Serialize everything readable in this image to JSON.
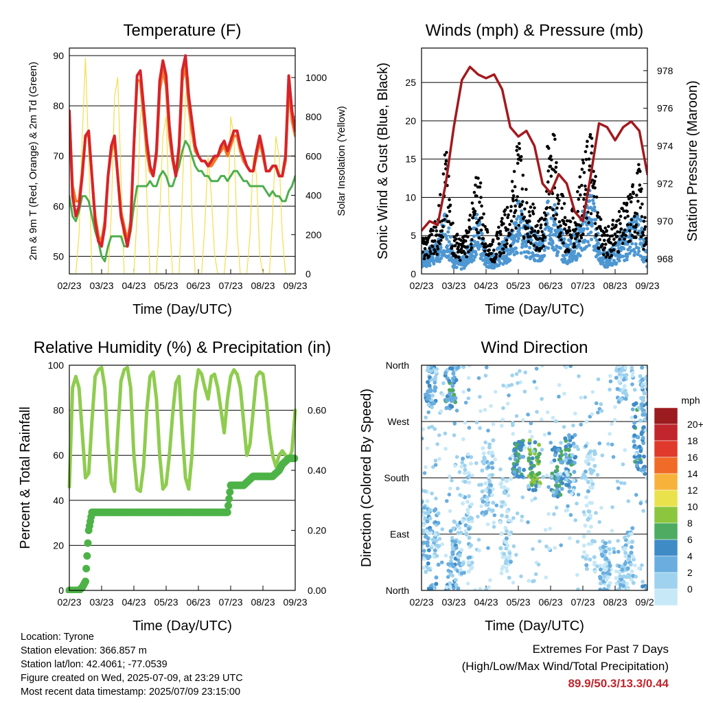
{
  "station": {
    "location": "Location: Tyrone",
    "elevation": "Station elevation: 366.857 m",
    "latlon": "Station lat/lon: 42.4061; -77.0539",
    "created": "Figure created on Wed, 2025-07-09, at 23:29 UTC",
    "recent": "Most recent data timestamp: 2025/07/09 23:15:00"
  },
  "extremes": {
    "title": "Extremes For Past 7 Days",
    "subtitle": "(High/Low/Max Wind/Total Precipitation)",
    "values": "89.9/50.3/13.3/0.44",
    "color": "#c0262c"
  },
  "time_ticks": [
    "02/23",
    "03/23",
    "04/23",
    "05/23",
    "06/23",
    "07/23",
    "08/23",
    "09/23"
  ],
  "time_label": "Time (Day/UTC)",
  "colors": {
    "temp2m": "#d8232a",
    "temp9m": "#f07a26",
    "dewpoint": "#4cae4c",
    "solar": "#f5dd4a",
    "wind": "#4d97d2",
    "gust": "#000000",
    "pressure": "#a3191d",
    "rh": "#8fcc4f",
    "precip": "#4db347"
  },
  "chart_data": [
    {
      "type": "line",
      "title": "Temperature (F)",
      "xlabel": "Time (Day/UTC)",
      "ylabel": "2m & 9m T (Red, Orange) & 2m Td (Green)",
      "ylabel_right": "Solar Insolation (Yellow)",
      "ylim": [
        46.5,
        91.5
      ],
      "yticks": [
        50,
        60,
        70,
        80,
        90
      ],
      "ylim_right": [
        0,
        1150
      ],
      "yticks_right": [
        0,
        200,
        400,
        600,
        800,
        1000
      ],
      "x": [
        0,
        0.1,
        0.2,
        0.3,
        0.4,
        0.5,
        0.6,
        0.7,
        0.8,
        0.9,
        1,
        1.1,
        1.2,
        1.3,
        1.4,
        1.5,
        1.6,
        1.7,
        1.8,
        1.9,
        2,
        2.1,
        2.2,
        2.3,
        2.4,
        2.5,
        2.6,
        2.7,
        2.8,
        2.9,
        3,
        3.1,
        3.2,
        3.3,
        3.4,
        3.5,
        3.6,
        3.7,
        3.8,
        3.9,
        4,
        4.1,
        4.2,
        4.3,
        4.4,
        4.5,
        4.6,
        4.7,
        4.8,
        4.9,
        5,
        5.1,
        5.2,
        5.3,
        5.4,
        5.5,
        5.6,
        5.7,
        5.8,
        5.9,
        6,
        6.1,
        6.2,
        6.3,
        6.4,
        6.5,
        6.6,
        6.7,
        6.8,
        6.9,
        7
      ],
      "series": [
        {
          "name": "2m T",
          "color": "#d8232a",
          "values": [
            79,
            62,
            58,
            60,
            66,
            74,
            75,
            66,
            57,
            53,
            52,
            56,
            66,
            72,
            74,
            66,
            58,
            55,
            52,
            56,
            72,
            86,
            87,
            80,
            73,
            68,
            66,
            71,
            85,
            89,
            86,
            76,
            70,
            66,
            72,
            87,
            90,
            82,
            77,
            72,
            70,
            69,
            69,
            68,
            69,
            70,
            70,
            72,
            73,
            71,
            73,
            75,
            75,
            72,
            70,
            68,
            67,
            67,
            71,
            74,
            71,
            67,
            67,
            68,
            68,
            66,
            66,
            70,
            86,
            79,
            75
          ]
        },
        {
          "name": "9m T",
          "color": "#f07a26",
          "values": [
            78,
            64,
            61,
            61,
            67,
            74,
            74,
            66,
            58,
            54,
            53,
            57,
            66,
            71,
            73,
            66,
            59,
            56,
            53,
            57,
            72,
            85,
            85,
            78,
            71,
            67,
            66,
            70,
            83,
            87,
            84,
            74,
            69,
            66,
            71,
            85,
            88,
            80,
            75,
            71,
            70,
            69,
            69,
            68,
            68,
            69,
            70,
            71,
            72,
            70,
            72,
            74,
            74,
            71,
            69,
            68,
            67,
            67,
            70,
            73,
            70,
            67,
            67,
            68,
            68,
            66,
            66,
            69,
            84,
            77,
            74
          ]
        },
        {
          "name": "2m Td",
          "color": "#4cae4c",
          "values": [
            62,
            58,
            57,
            59,
            62,
            62,
            61,
            58,
            55,
            53,
            50,
            49,
            52,
            54,
            54,
            54,
            54,
            52,
            52,
            55,
            60,
            64,
            64,
            64,
            64,
            65,
            64,
            64,
            66,
            67,
            66,
            64,
            64,
            66,
            68,
            71,
            73,
            72,
            70,
            68,
            67,
            67,
            66,
            66,
            65,
            65,
            65,
            66,
            66,
            65,
            66,
            67,
            67,
            66,
            65,
            65,
            64,
            64,
            64,
            64,
            64,
            63,
            62,
            63,
            62,
            62,
            61,
            61,
            63,
            64,
            66
          ]
        },
        {
          "name": "Solar",
          "color": "#f5dd4a",
          "axis": "right",
          "values": [
            0,
            0,
            0,
            200,
            700,
            1100,
            600,
            0,
            0,
            0,
            0,
            0,
            0,
            300,
            900,
            1000,
            500,
            0,
            0,
            0,
            0,
            300,
            800,
            900,
            400,
            0,
            0,
            0,
            300,
            700,
            800,
            300,
            0,
            0,
            0,
            400,
            900,
            1000,
            300,
            0,
            0,
            0,
            250,
            600,
            400,
            100,
            0,
            0,
            0,
            200,
            800,
            700,
            200,
            0,
            0,
            0,
            200,
            600,
            500,
            100,
            0,
            0,
            0,
            300,
            700,
            600,
            200,
            0,
            0,
            0,
            0
          ]
        }
      ]
    },
    {
      "type": "scatter",
      "title": "Winds (mph) & Pressure (mb)",
      "xlabel": "Time (Day/UTC)",
      "ylabel": "Sonic Wind & Gust (Blue, Black)",
      "ylabel_right": "Station Pressure (Maroon)",
      "ylim": [
        0,
        29.5
      ],
      "yticks": [
        0,
        5,
        10,
        15,
        20,
        25
      ],
      "ylim_right": [
        967.2,
        979.2
      ],
      "yticks_right": [
        968,
        970,
        972,
        974,
        976,
        978
      ],
      "x": [
        0,
        0.25,
        0.5,
        0.75,
        1,
        1.25,
        1.5,
        1.75,
        2,
        2.25,
        2.5,
        2.75,
        3,
        3.25,
        3.5,
        3.75,
        4,
        4.25,
        4.5,
        4.75,
        5,
        5.25,
        5.5,
        5.75,
        6,
        6.25,
        6.5,
        6.75,
        7
      ],
      "series": [
        {
          "name": "Sonic Wind",
          "color": "#4d97d2",
          "values": [
            2,
            2.5,
            3,
            6,
            2,
            1.5,
            3,
            6,
            2,
            2,
            3,
            4,
            7,
            5,
            4,
            3,
            9,
            5,
            3,
            4,
            6,
            9,
            3,
            2,
            3,
            4,
            5,
            6,
            2
          ]
        },
        {
          "name": "Gust",
          "color": "#000000",
          "values": [
            3,
            4,
            5,
            12,
            4,
            3,
            5,
            10,
            4,
            3,
            5,
            7,
            12,
            8,
            6,
            5,
            16,
            9,
            5,
            6,
            10,
            14,
            5,
            4,
            5,
            6,
            8,
            10,
            3
          ]
        },
        {
          "name": "Station Pressure",
          "color": "#a3191d",
          "axis": "right",
          "values": [
            969.5,
            970,
            969.8,
            972,
            975,
            977.5,
            978.2,
            977.8,
            977.6,
            977.8,
            977,
            975,
            974.5,
            974.8,
            974,
            972,
            971.5,
            972.5,
            972,
            970.5,
            970,
            972.5,
            975.2,
            975,
            974.3,
            975,
            975.3,
            974.8,
            972.5
          ]
        }
      ]
    },
    {
      "type": "line",
      "title": "Relative Humidity (%) & Precipitation (in)",
      "xlabel": "Time (Day/UTC)",
      "ylabel": "Percent & Total Rainfall",
      "ylim": [
        0,
        100
      ],
      "yticks": [
        0,
        20,
        40,
        60,
        80,
        100
      ],
      "ylim_right": [
        0,
        0.75
      ],
      "yticks_right": [
        "0.00",
        "0.20",
        "0.40",
        "0.60"
      ],
      "x": [
        0,
        0.1,
        0.2,
        0.3,
        0.4,
        0.5,
        0.6,
        0.7,
        0.8,
        0.9,
        1,
        1.1,
        1.2,
        1.3,
        1.4,
        1.5,
        1.6,
        1.7,
        1.8,
        1.9,
        2,
        2.1,
        2.2,
        2.3,
        2.4,
        2.5,
        2.6,
        2.7,
        2.8,
        2.9,
        3,
        3.1,
        3.2,
        3.3,
        3.4,
        3.5,
        3.6,
        3.7,
        3.8,
        3.9,
        4,
        4.1,
        4.2,
        4.3,
        4.4,
        4.5,
        4.6,
        4.7,
        4.8,
        4.9,
        5,
        5.1,
        5.2,
        5.3,
        5.4,
        5.5,
        5.6,
        5.7,
        5.8,
        5.9,
        6,
        6.1,
        6.2,
        6.3,
        6.4,
        6.5,
        6.6,
        6.7,
        6.8,
        6.9,
        7
      ],
      "series": [
        {
          "name": "RH",
          "color": "#8fcc4f",
          "values": [
            46,
            90,
            95,
            90,
            70,
            50,
            52,
            75,
            95,
            98,
            99,
            90,
            65,
            48,
            44,
            70,
            93,
            98,
            99,
            90,
            60,
            45,
            44,
            55,
            80,
            95,
            97,
            85,
            60,
            45,
            47,
            60,
            78,
            92,
            95,
            70,
            50,
            45,
            60,
            88,
            98,
            96,
            90,
            85,
            95,
            96,
            90,
            80,
            70,
            85,
            95,
            98,
            96,
            90,
            75,
            60,
            65,
            80,
            95,
            97,
            96,
            85,
            70,
            60,
            55,
            60,
            62,
            60,
            58,
            62,
            80
          ]
        },
        {
          "name": "Precipitation",
          "color": "#4db347",
          "axis": "right",
          "values": [
            0,
            0,
            0,
            0,
            0.01,
            0.03,
            0.2,
            0.26,
            0.26,
            0.26,
            0.26,
            0.26,
            0.26,
            0.26,
            0.26,
            0.26,
            0.26,
            0.26,
            0.26,
            0.26,
            0.26,
            0.26,
            0.26,
            0.26,
            0.26,
            0.26,
            0.26,
            0.26,
            0.26,
            0.26,
            0.26,
            0.26,
            0.26,
            0.26,
            0.26,
            0.26,
            0.26,
            0.26,
            0.26,
            0.26,
            0.26,
            0.26,
            0.26,
            0.26,
            0.26,
            0.26,
            0.26,
            0.26,
            0.26,
            0.26,
            0.35,
            0.35,
            0.35,
            0.35,
            0.35,
            0.36,
            0.37,
            0.38,
            0.38,
            0.38,
            0.38,
            0.38,
            0.38,
            0.38,
            0.39,
            0.4,
            0.42,
            0.43,
            0.44,
            0.44,
            0.44
          ]
        }
      ]
    },
    {
      "type": "scatter",
      "title": "Wind Direction",
      "xlabel": "Time (Day/UTC)",
      "ylabel": "Direction (Colored By Speed)",
      "ylim": [
        0,
        360
      ],
      "yticks": [
        {
          "value": 0,
          "label": "North"
        },
        {
          "value": 90,
          "label": "East"
        },
        {
          "value": 180,
          "label": "South"
        },
        {
          "value": 270,
          "label": "West"
        },
        {
          "value": 360,
          "label": "North"
        }
      ],
      "legend_title": "mph",
      "legend_placement": "right",
      "colorbar": [
        {
          "label": "0",
          "color": "#c6e8f7"
        },
        {
          "label": "2",
          "color": "#9ed2ee"
        },
        {
          "label": "4",
          "color": "#6aaedf"
        },
        {
          "label": "6",
          "color": "#3f8bc6"
        },
        {
          "label": "8",
          "color": "#4eab62"
        },
        {
          "label": "10",
          "color": "#8cc63f"
        },
        {
          "label": "12",
          "color": "#e9e24c"
        },
        {
          "label": "14",
          "color": "#f7b23b"
        },
        {
          "label": "16",
          "color": "#f06b27"
        },
        {
          "label": "18",
          "color": "#df3a2b"
        },
        {
          "label": "20+",
          "color": "#c0262c"
        },
        {
          "label": "",
          "color": "#9b1b1f"
        }
      ],
      "clusters": [
        {
          "x": 0.05,
          "dir": 90,
          "spread": 70,
          "speed": 3
        },
        {
          "x": 0.3,
          "dir": 330,
          "spread": 40,
          "speed": 5
        },
        {
          "x": 0.35,
          "dir": 60,
          "spread": 70,
          "speed": 4
        },
        {
          "x": 0.9,
          "dir": 330,
          "spread": 40,
          "speed": 6
        },
        {
          "x": 1.05,
          "dir": 50,
          "spread": 60,
          "speed": 4
        },
        {
          "x": 1.4,
          "dir": 120,
          "spread": 100,
          "speed": 2
        },
        {
          "x": 2.05,
          "dir": 180,
          "spread": 60,
          "speed": 3
        },
        {
          "x": 2.6,
          "dir": 100,
          "spread": 80,
          "speed": 2
        },
        {
          "x": 3.0,
          "dir": 210,
          "spread": 30,
          "speed": 7
        },
        {
          "x": 3.5,
          "dir": 200,
          "spread": 40,
          "speed": 9
        },
        {
          "x": 4.2,
          "dir": 190,
          "spread": 40,
          "speed": 7
        },
        {
          "x": 4.6,
          "dir": 200,
          "spread": 50,
          "speed": 6
        },
        {
          "x": 5.2,
          "dir": 130,
          "spread": 100,
          "speed": 2
        },
        {
          "x": 5.7,
          "dir": 40,
          "spread": 40,
          "speed": 3
        },
        {
          "x": 6.2,
          "dir": 350,
          "spread": 50,
          "speed": 3
        },
        {
          "x": 6.4,
          "dir": 40,
          "spread": 60,
          "speed": 3
        },
        {
          "x": 6.75,
          "dir": 240,
          "spread": 60,
          "speed": 6
        },
        {
          "x": 6.95,
          "dir": 320,
          "spread": 50,
          "speed": 4
        }
      ]
    }
  ]
}
